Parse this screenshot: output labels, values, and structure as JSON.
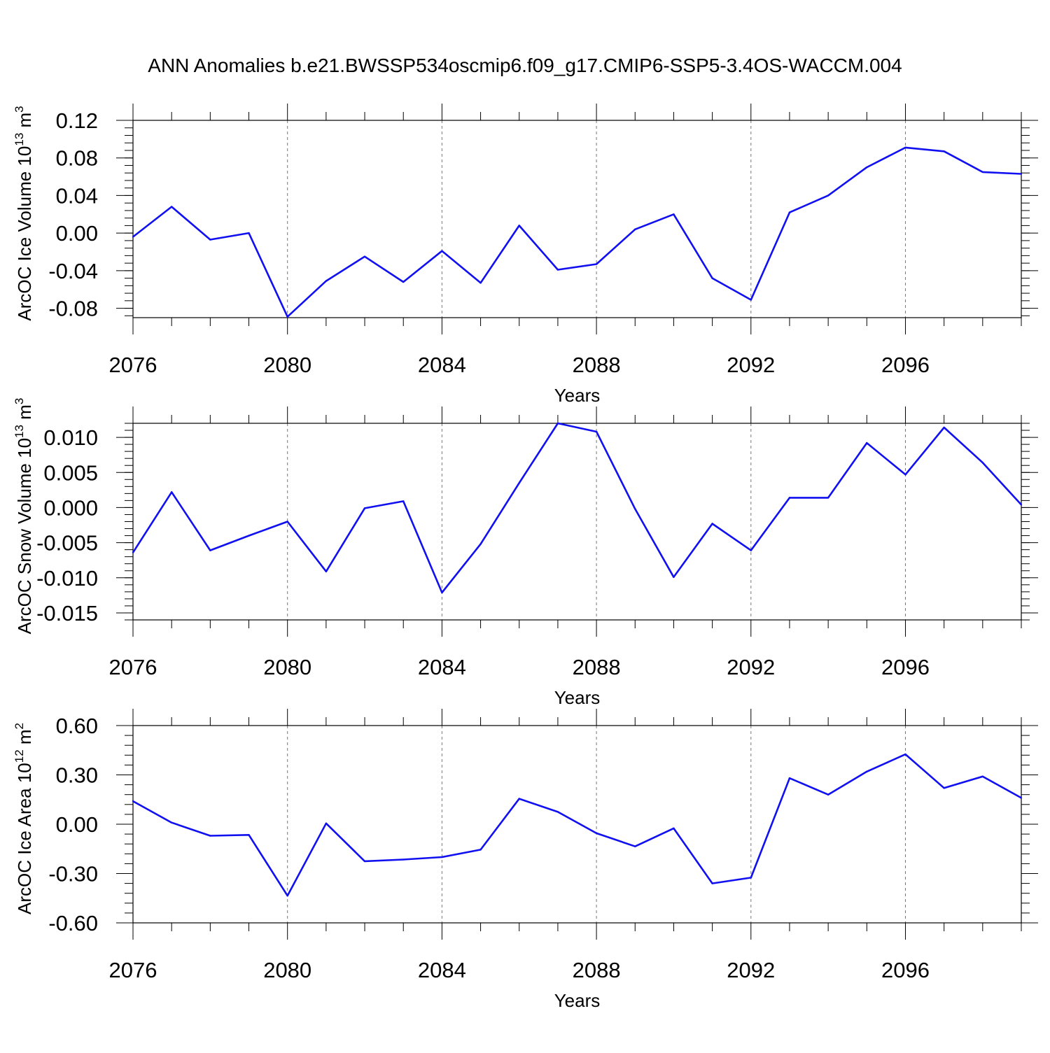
{
  "title": "ANN Anomalies b.e21.BWSSP534oscmip6.f09_g17.CMIP6-SSP5-3.4OS-WACCM.004",
  "line_color": "#1010f0",
  "chart_data": [
    {
      "type": "line",
      "ylabel": "ArcOC Ice Volume 10",
      "ylabel_exp": "13",
      "ylabel_unit": "m",
      "ylabel_unit_exp": "3",
      "xlabel": "Years",
      "x": [
        2076,
        2077,
        2078,
        2079,
        2080,
        2081,
        2082,
        2083,
        2084,
        2085,
        2086,
        2087,
        2088,
        2089,
        2090,
        2091,
        2092,
        2093,
        2094,
        2095,
        2096,
        2097,
        2098,
        2099
      ],
      "values": [
        -0.004,
        0.028,
        -0.007,
        0.0,
        -0.089,
        -0.051,
        -0.025,
        -0.052,
        -0.019,
        -0.053,
        0.008,
        -0.039,
        -0.033,
        0.004,
        0.02,
        -0.048,
        -0.071,
        0.022,
        0.04,
        0.07,
        0.091,
        0.087,
        0.065,
        0.063
      ],
      "xlim": [
        2076,
        2099
      ],
      "ylim": [
        -0.09,
        0.12
      ],
      "xticks": [
        2076,
        2080,
        2084,
        2088,
        2092,
        2096
      ],
      "xtick_labels": [
        "2076",
        "2080",
        "2084",
        "2088",
        "2092",
        "2096"
      ],
      "yticks": [
        -0.08,
        -0.04,
        0.0,
        0.04,
        0.08,
        0.12
      ],
      "ytick_labels": [
        "-0.08",
        "-0.04",
        "0.00",
        "0.04",
        "0.08",
        "0.12"
      ],
      "minor_y_step": 0.008
    },
    {
      "type": "line",
      "ylabel": "ArcOC Snow Volume 10",
      "ylabel_exp": "13",
      "ylabel_unit": "m",
      "ylabel_unit_exp": "3",
      "xlabel": "Years",
      "x": [
        2076,
        2077,
        2078,
        2079,
        2080,
        2081,
        2082,
        2083,
        2084,
        2085,
        2086,
        2087,
        2088,
        2089,
        2090,
        2091,
        2092,
        2093,
        2094,
        2095,
        2096,
        2097,
        2098,
        2099
      ],
      "values": [
        -0.0064,
        0.0022,
        -0.0061,
        -0.004,
        -0.002,
        -0.0091,
        -0.0001,
        0.0009,
        -0.0121,
        -0.0052,
        0.0035,
        0.012,
        0.0108,
        -0.0002,
        -0.0099,
        -0.0023,
        -0.0061,
        0.0014,
        0.0014,
        0.0092,
        0.0047,
        0.0114,
        0.0064,
        0.0004
      ],
      "xlim": [
        2076,
        2099
      ],
      "ylim": [
        -0.016,
        0.012
      ],
      "xticks": [
        2076,
        2080,
        2084,
        2088,
        2092,
        2096
      ],
      "xtick_labels": [
        "2076",
        "2080",
        "2084",
        "2088",
        "2092",
        "2096"
      ],
      "yticks": [
        -0.015,
        -0.01,
        -0.005,
        0.0,
        0.005,
        0.01
      ],
      "ytick_labels": [
        "-0.015",
        "-0.010",
        "-0.005",
        "0.000",
        "0.005",
        "0.010"
      ],
      "minor_y_step": 0.001
    },
    {
      "type": "line",
      "ylabel": "ArcOC Ice Area 10",
      "ylabel_exp": "12",
      "ylabel_unit": "m",
      "ylabel_unit_exp": "2",
      "xlabel": "Years",
      "x": [
        2076,
        2077,
        2078,
        2079,
        2080,
        2081,
        2082,
        2083,
        2084,
        2085,
        2086,
        2087,
        2088,
        2089,
        2090,
        2091,
        2092,
        2093,
        2094,
        2095,
        2096,
        2097,
        2098,
        2099
      ],
      "values": [
        0.14,
        0.01,
        -0.07,
        -0.065,
        -0.435,
        0.005,
        -0.225,
        -0.215,
        -0.2,
        -0.155,
        0.155,
        0.075,
        -0.055,
        -0.135,
        -0.025,
        -0.36,
        -0.325,
        0.28,
        0.18,
        0.32,
        0.425,
        0.22,
        0.29,
        0.16
      ],
      "xlim": [
        2076,
        2099
      ],
      "ylim": [
        -0.6,
        0.6
      ],
      "xticks": [
        2076,
        2080,
        2084,
        2088,
        2092,
        2096
      ],
      "xtick_labels": [
        "2076",
        "2080",
        "2084",
        "2088",
        "2092",
        "2096"
      ],
      "yticks": [
        -0.6,
        -0.3,
        0.0,
        0.3,
        0.6
      ],
      "ytick_labels": [
        "-0.60",
        "-0.30",
        "0.00",
        "0.30",
        "0.60"
      ],
      "minor_y_step": 0.06
    }
  ]
}
